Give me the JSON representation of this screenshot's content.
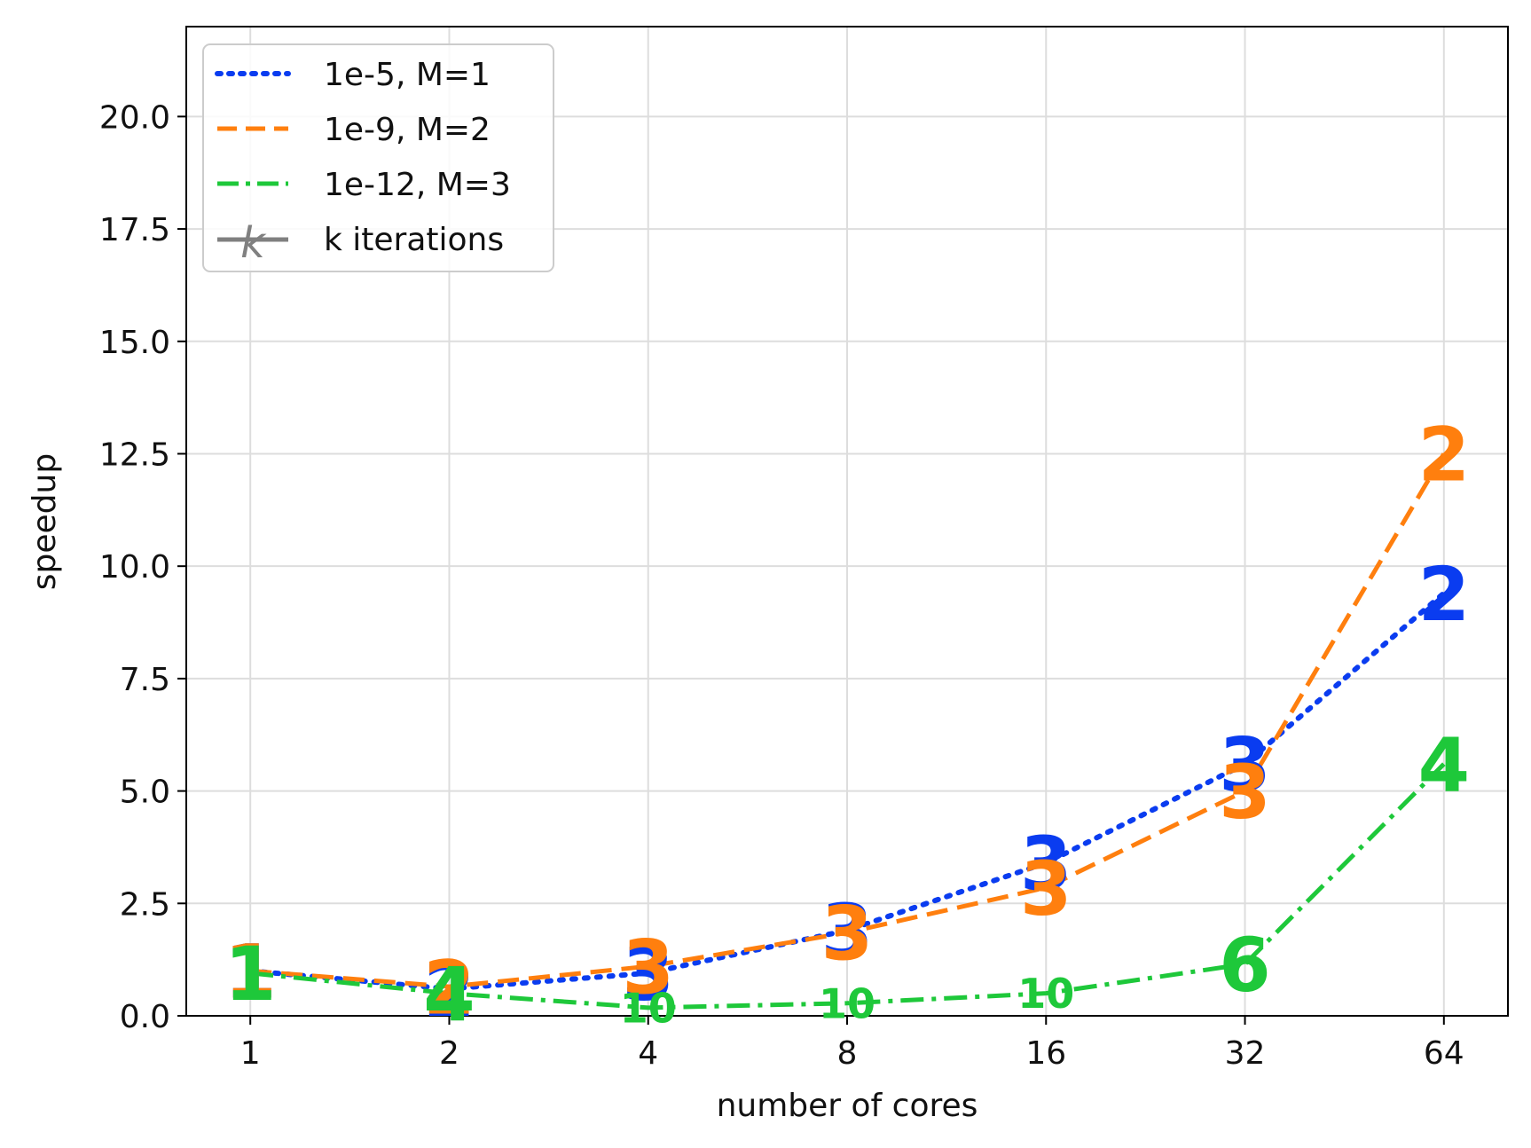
{
  "chart_data": {
    "type": "line",
    "x_scale": "log2",
    "x": [
      1,
      2,
      4,
      8,
      16,
      32,
      64
    ],
    "x_tick_labels": [
      "1",
      "2",
      "4",
      "8",
      "16",
      "32",
      "64"
    ],
    "y_ticks": [
      0.0,
      2.5,
      5.0,
      7.5,
      10.0,
      12.5,
      15.0,
      17.5,
      20.0
    ],
    "y_tick_labels": [
      "0.0",
      "2.5",
      "5.0",
      "7.5",
      "10.0",
      "12.5",
      "15.0",
      "17.5",
      "20.0"
    ],
    "xlim": [
      0.8,
      80
    ],
    "ylim": [
      0,
      22
    ],
    "xlabel": "number of cores",
    "ylabel": "speedup",
    "grid": true,
    "legend_position": "top-left",
    "series": [
      {
        "name": "1e-5, M=1",
        "color": "#0a3cf0",
        "linestyle": "dotted",
        "values": [
          1.0,
          0.6,
          0.95,
          1.9,
          3.4,
          5.6,
          9.4
        ],
        "iterations": [
          "1",
          "2",
          "3",
          "3",
          "3",
          "3",
          "2"
        ],
        "label_size": "large"
      },
      {
        "name": "1e-9, M=2",
        "color": "#ff7f0e",
        "linestyle": "dashed",
        "values": [
          1.0,
          0.65,
          1.1,
          1.85,
          2.85,
          5.0,
          12.5
        ],
        "iterations": [
          "1",
          "2",
          "3",
          "3",
          "3",
          "3",
          "2"
        ],
        "label_size": "large"
      },
      {
        "name": "1e-12, M=3",
        "color": "#1ec83a",
        "linestyle": "dashdot",
        "values": [
          0.95,
          0.5,
          0.18,
          0.28,
          0.5,
          1.15,
          5.6
        ],
        "iterations": [
          "1",
          "4",
          "10",
          "10",
          "10",
          "6",
          "4"
        ],
        "label_size": "mixed"
      }
    ],
    "legend_extra": {
      "name": "k iterations",
      "color": "#808080"
    }
  }
}
